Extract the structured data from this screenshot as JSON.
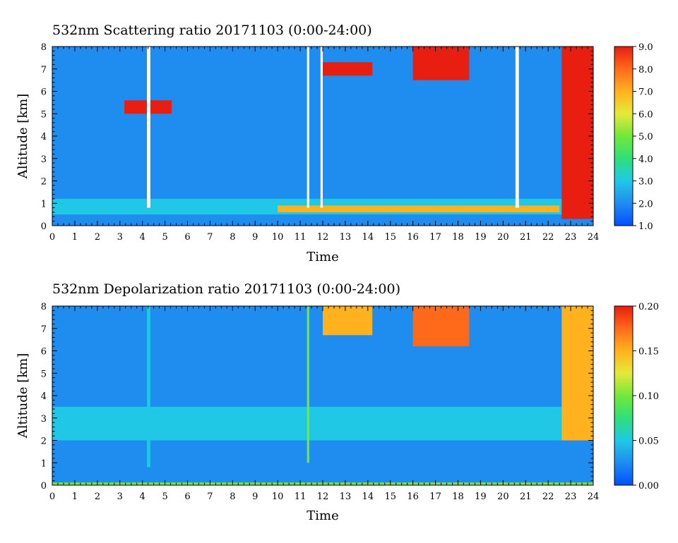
{
  "chart_data": [
    {
      "type": "heatmap",
      "title": "532nm Scattering ratio  20171103 (0:00-24:00)",
      "xlabel": "Time",
      "ylabel": "Altitude [km]",
      "xlim": [
        0,
        24
      ],
      "ylim": [
        0,
        8
      ],
      "xticks": [
        "0",
        "1",
        "2",
        "3",
        "4",
        "5",
        "6",
        "7",
        "8",
        "9",
        "10",
        "11",
        "12",
        "13",
        "14",
        "15",
        "16",
        "17",
        "18",
        "19",
        "20",
        "21",
        "22",
        "23",
        "24"
      ],
      "yticks": [
        "0",
        "1",
        "2",
        "3",
        "4",
        "5",
        "6",
        "7",
        "8"
      ],
      "colorbar": {
        "range": [
          1.0,
          9.0
        ],
        "tick_labels": [
          "1.0",
          "2.0",
          "3.0",
          "4.0",
          "5.0",
          "6.0",
          "7.0",
          "8.0",
          "9.0"
        ],
        "colors": [
          "#0050ff",
          "#1f8cf0",
          "#20c8e6",
          "#2ee07a",
          "#72e83a",
          "#e6e83a",
          "#ffb21e",
          "#ff6a1a",
          "#e81e10"
        ]
      },
      "background_value": 2.0,
      "features": [
        {
          "kind": "boundary_layer",
          "time": [
            0,
            24
          ],
          "altitude": [
            0.5,
            1.2
          ],
          "value": 3.2
        },
        {
          "kind": "aerosol_layer_strong",
          "time": [
            10,
            22.5
          ],
          "altitude": [
            0.6,
            0.9
          ],
          "value": 7.0
        },
        {
          "kind": "cloud",
          "time": [
            3.2,
            5.3
          ],
          "altitude": [
            5.0,
            5.6
          ],
          "value": 9.0
        },
        {
          "kind": "cloud",
          "time": [
            12.0,
            14.2
          ],
          "altitude": [
            6.7,
            7.3
          ],
          "value": 9.0
        },
        {
          "kind": "cloud",
          "time": [
            16.0,
            18.5
          ],
          "altitude": [
            6.5,
            8.0
          ],
          "value": 9.0
        },
        {
          "kind": "cloud",
          "time": [
            22.6,
            24.0
          ],
          "altitude": [
            0.3,
            8.0
          ],
          "value": 9.0
        },
        {
          "kind": "no_data",
          "time": [
            4.2,
            4.35
          ],
          "altitude": [
            0.8,
            8.0
          ]
        },
        {
          "kind": "no_data",
          "time": [
            11.3,
            11.4
          ],
          "altitude": [
            0.8,
            8.0
          ]
        },
        {
          "kind": "no_data",
          "time": [
            11.9,
            12.0
          ],
          "altitude": [
            0.8,
            8.0
          ]
        },
        {
          "kind": "no_data",
          "time": [
            20.55,
            20.7
          ],
          "altitude": [
            0.8,
            8.0
          ]
        }
      ]
    },
    {
      "type": "heatmap",
      "title": "532nm Depolarization ratio  20171103 (0:00-24:00)",
      "xlabel": "Time",
      "ylabel": "Altitude [km]",
      "xlim": [
        0,
        24
      ],
      "ylim": [
        0,
        8
      ],
      "xticks": [
        "0",
        "1",
        "2",
        "3",
        "4",
        "5",
        "6",
        "7",
        "8",
        "9",
        "10",
        "11",
        "12",
        "13",
        "14",
        "15",
        "16",
        "17",
        "18",
        "19",
        "20",
        "21",
        "22",
        "23",
        "24"
      ],
      "yticks": [
        "0",
        "1",
        "2",
        "3",
        "4",
        "5",
        "6",
        "7",
        "8"
      ],
      "colorbar": {
        "range": [
          0.0,
          0.2
        ],
        "tick_labels": [
          "0.00",
          "0.05",
          "0.10",
          "0.15",
          "0.20"
        ],
        "colors": [
          "#0050ff",
          "#1f8cf0",
          "#20c8e6",
          "#2ee07a",
          "#72e83a",
          "#e6e83a",
          "#ffb21e",
          "#ff6a1a",
          "#e81e10"
        ]
      },
      "background_value": 0.03,
      "features": [
        {
          "kind": "layer",
          "time": [
            0,
            24
          ],
          "altitude": [
            0.0,
            0.12
          ],
          "value": 0.09
        },
        {
          "kind": "layer",
          "time": [
            0,
            24
          ],
          "altitude": [
            2.0,
            3.5
          ],
          "value": 0.045
        },
        {
          "kind": "ice_cloud",
          "time": [
            12.0,
            14.2
          ],
          "altitude": [
            6.7,
            8.0
          ],
          "value": 0.16
        },
        {
          "kind": "ice_cloud",
          "time": [
            16.0,
            18.5
          ],
          "altitude": [
            6.2,
            8.0
          ],
          "value": 0.17
        },
        {
          "kind": "ice_cloud",
          "time": [
            22.6,
            24.0
          ],
          "altitude": [
            2.0,
            8.0
          ],
          "value": 0.15
        },
        {
          "kind": "column",
          "time": [
            4.2,
            4.35
          ],
          "altitude": [
            0.8,
            8.0
          ],
          "value": 0.06
        },
        {
          "kind": "column",
          "time": [
            11.3,
            11.4
          ],
          "altitude": [
            1.0,
            8.0
          ],
          "value": 0.09
        }
      ]
    }
  ]
}
